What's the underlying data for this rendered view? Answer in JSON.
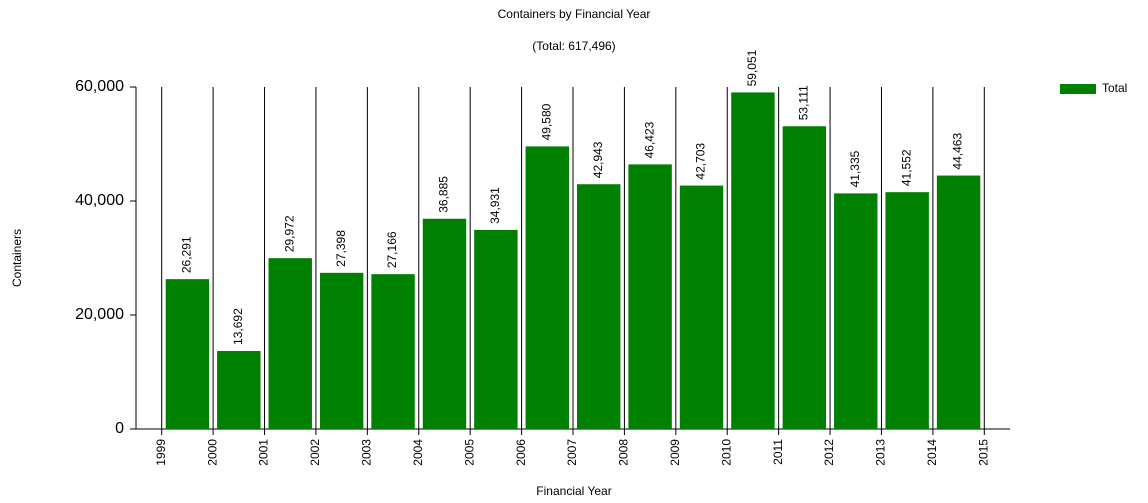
{
  "chart_data": {
    "type": "histogram",
    "title": "Containers by Financial Year",
    "subtitle": "(Total: 617,496)",
    "x_label": "Financial Year",
    "y_label": "Containers",
    "bins": [
      1999,
      2000,
      2001,
      2002,
      2003,
      2004,
      2005,
      2006,
      2007,
      2008,
      2009,
      2010,
      2011,
      2012,
      2013,
      2014,
      2015
    ],
    "series": [
      {
        "name": "Total",
        "color": "#008000",
        "values": [
          26291,
          13692,
          29972,
          27398,
          27166,
          36885,
          34931,
          49580,
          42943,
          46423,
          42703,
          59051,
          53111,
          41335,
          41552,
          44463
        ],
        "value_labels": [
          "26,291",
          "13,692",
          "29,972",
          "27,398",
          "27,166",
          "36,885",
          "34,931",
          "49,580",
          "42,943",
          "46,423",
          "42,703",
          "59,051",
          "53,111",
          "41,335",
          "41,552",
          "44,463"
        ]
      }
    ],
    "xlim": [
      1998.5,
      2015.5
    ],
    "xticks": [
      1999,
      2000,
      2001,
      2002,
      2003,
      2004,
      2005,
      2006,
      2007,
      2008,
      2009,
      2010,
      2011,
      2012,
      2013,
      2014,
      2015
    ],
    "ylim": [
      0,
      60000
    ],
    "yticks": [
      0,
      {
        "value": 20000,
        "label": "20,000"
      },
      {
        "value": 40000,
        "label": "40,000"
      },
      {
        "value": 60000,
        "label": "60,000"
      }
    ],
    "grid": true,
    "legend": "top-right"
  }
}
